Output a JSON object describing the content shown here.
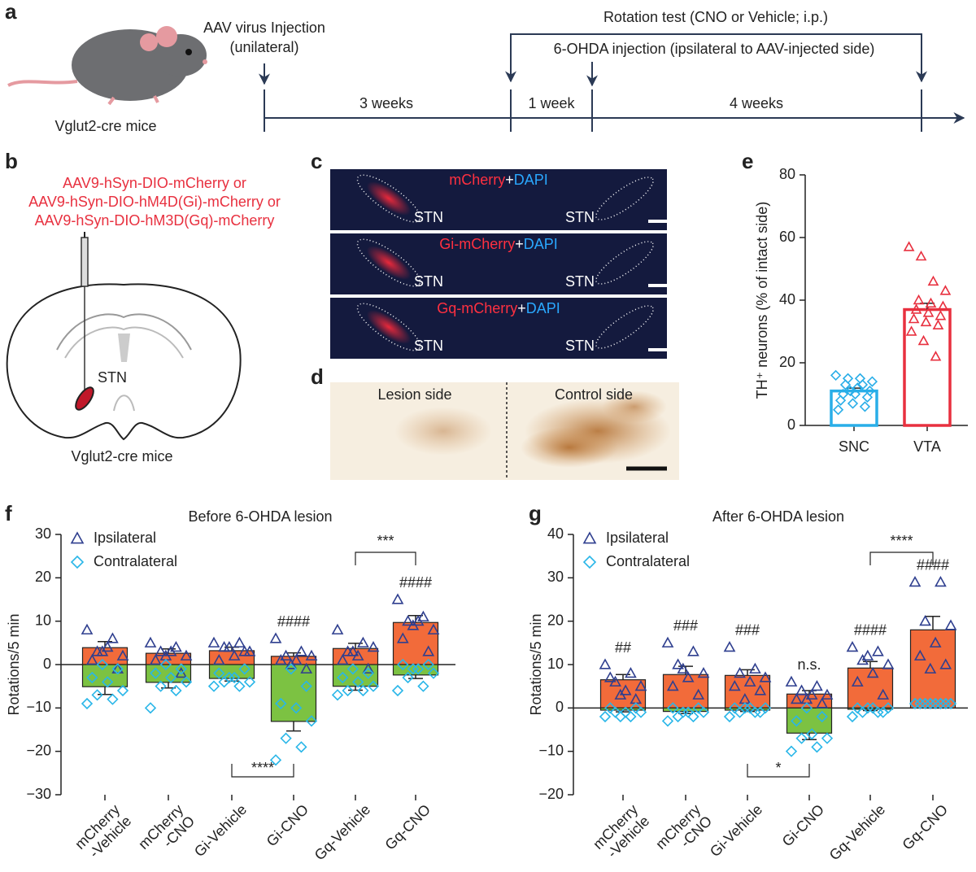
{
  "panel_a": {
    "label": "a",
    "mouse_label": "Vglut2-cre mice",
    "injection": [
      "AAV virus Injection",
      "(unilateral)"
    ],
    "rotation_test": "Rotation test (CNO or Vehicle; i.p.)",
    "lesion": "6-OHDA injection (ipsilateral to AAV-injected side)",
    "intervals": [
      "3 weeks",
      "1 week",
      "4 weeks"
    ]
  },
  "panel_b": {
    "label": "b",
    "constructs": [
      "AAV9-hSyn-DIO-mCherry  or",
      "AAV9-hSyn-DIO-hM4D(Gi)-mCherry or",
      "AAV9-hSyn-DIO-hM3D(Gq)-mCherry"
    ],
    "region": "STN",
    "mouse_label": "Vglut2-cre mice"
  },
  "panel_c": {
    "label": "c",
    "images": [
      {
        "stain": "mCherry",
        "plus": "+",
        "counterstain": "DAPI",
        "left": "STN",
        "right": "STN"
      },
      {
        "stain": "Gi-mCherry",
        "plus": "+",
        "counterstain": "DAPI",
        "left": "STN",
        "right": "STN"
      },
      {
        "stain": "Gq-mCherry",
        "plus": "+",
        "counterstain": "DAPI",
        "left": "STN",
        "right": "STN"
      }
    ]
  },
  "panel_d": {
    "label": "d",
    "left": "Lesion side",
    "right": "Control side"
  },
  "chart_data": [
    {
      "type": "bar",
      "panel": "e",
      "ylabel": "TH⁺ neurons (% of intact side)",
      "categories": [
        "SNC",
        "VTA"
      ],
      "values": [
        11,
        37
      ],
      "errors": [
        0.9,
        2.0
      ],
      "colors": [
        "#29aee8",
        "#e8303f"
      ],
      "markers": [
        "diamond",
        "triangle"
      ],
      "points": [
        [
          16,
          15,
          15,
          14,
          13,
          12,
          11,
          10,
          10,
          9,
          8,
          7,
          6,
          5,
          11,
          13
        ],
        [
          57,
          54,
          46,
          43,
          40,
          39,
          38,
          37,
          36,
          35,
          34,
          33,
          32,
          30,
          27,
          22
        ]
      ],
      "ylim": [
        0,
        80
      ],
      "yticks": [
        0,
        20,
        40,
        60,
        80
      ]
    },
    {
      "type": "bar",
      "panel": "f",
      "title": "Before 6-OHDA lesion",
      "ylabel": "Rotations/5 min",
      "categories": [
        "mCherry\n-Vehicle",
        "mCherry\n-CNO",
        "Gi-Vehicle",
        "Gi-CNO",
        "Gq-Vehicle",
        "Gq-CNO"
      ],
      "series": [
        {
          "name": "Ipsilateral",
          "color": "#f26b3a",
          "marker": "triangle",
          "marker_color": "#2f3f8f",
          "values": [
            3.9,
            2.6,
            3.2,
            1.9,
            3.7,
            9.7
          ],
          "errors": [
            1.4,
            1.0,
            0.8,
            0.8,
            1.2,
            1.6
          ],
          "points": [
            [
              8,
              6,
              3,
              2,
              4,
              1,
              -1,
              3
            ],
            [
              5,
              4,
              3,
              2,
              3,
              1,
              -2,
              2
            ],
            [
              5,
              5,
              4,
              3,
              2,
              1,
              3,
              4
            ],
            [
              6,
              3,
              2,
              2,
              1,
              1,
              -1,
              0
            ],
            [
              8,
              5,
              3,
              4,
              2,
              1,
              -1,
              3
            ],
            [
              15,
              11,
              10,
              8,
              10,
              6,
              3,
              9
            ]
          ]
        },
        {
          "name": "Contralateral",
          "color": "#7cc242",
          "marker": "diamond",
          "marker_color": "#29b6e8",
          "values": [
            -5.1,
            -4.1,
            -3.2,
            -13.1,
            -5.0,
            -2.4
          ],
          "errors": [
            1.8,
            1.3,
            0.6,
            2.2,
            0.9,
            0.8
          ],
          "points": [
            [
              -9,
              -8,
              -7,
              -6,
              -4,
              -3,
              -1,
              0
            ],
            [
              -10,
              -6,
              -5,
              -4,
              -3,
              -2,
              -1,
              0
            ],
            [
              -5,
              -5,
              -4,
              -4,
              -3,
              -2,
              -1,
              -3
            ],
            [
              -22,
              -19,
              -17,
              -13,
              -10,
              -9,
              -5,
              -1
            ],
            [
              -7,
              -6,
              -6,
              -5,
              -4,
              -3,
              -2,
              -1
            ],
            [
              -6,
              -5,
              -3,
              -2,
              -1,
              0,
              0,
              -1
            ]
          ]
        }
      ],
      "above": [
        null,
        null,
        null,
        "####",
        null,
        "####"
      ],
      "brackets": [
        {
          "label": "****",
          "between": [
            2,
            3
          ],
          "side": "bottom"
        },
        {
          "label": "***",
          "between": [
            4,
            5
          ],
          "side": "top"
        }
      ],
      "ylim": [
        -30,
        30
      ],
      "yticks": [
        {
          "value": -30,
          "label": "−30"
        },
        {
          "value": -20,
          "label": "−20"
        },
        {
          "value": -10,
          "label": "−10"
        },
        0,
        10,
        20,
        30
      ]
    },
    {
      "type": "bar",
      "panel": "g",
      "title": "After 6-OHDA lesion",
      "ylabel": "Rotations/5 min",
      "categories": [
        "mCherry\n-Vehicle",
        "mCherry\n-CNO",
        "Gi-Vehicle",
        "Gi-CNO",
        "Gq-Vehicle",
        "Gq-CNO"
      ],
      "series": [
        {
          "name": "Ipsilateral",
          "color": "#f26b3a",
          "marker": "triangle",
          "marker_color": "#2f3f8f",
          "values": [
            6.5,
            7.7,
            7.5,
            3.2,
            9.2,
            18
          ],
          "errors": [
            1.2,
            1.9,
            1.3,
            0.8,
            1.5,
            3.1
          ],
          "points": [
            [
              10,
              8,
              6,
              5,
              4,
              7,
              2,
              3
            ],
            [
              15,
              13,
              10,
              8,
              7,
              5,
              3,
              9
            ],
            [
              14,
              9,
              8,
              7,
              6,
              5,
              4,
              2
            ],
            [
              6,
              5,
              4,
              3,
              3,
              2,
              1,
              2
            ],
            [
              14,
              13,
              11,
              10,
              8,
              6,
              3,
              12
            ],
            [
              29,
              29,
              20,
              19,
              15,
              12,
              10,
              9
            ]
          ]
        },
        {
          "name": "Contralateral",
          "color": "#7cc242",
          "marker": "diamond",
          "marker_color": "#29b6e8",
          "values": [
            -0.5,
            -0.8,
            -0.5,
            -5.8,
            -0.3,
            0
          ],
          "errors": [
            0.4,
            0.5,
            0.3,
            1.5,
            0.3,
            0
          ],
          "points": [
            [
              -2,
              -2,
              -1,
              -1,
              -1,
              0,
              0,
              -2
            ],
            [
              -3,
              -2,
              -2,
              -1,
              -1,
              0,
              0,
              -1
            ],
            [
              -2,
              -1,
              -1,
              0,
              0,
              0,
              -1,
              0
            ],
            [
              -10,
              -9,
              -7,
              -7,
              -6,
              -3,
              -2,
              0
            ],
            [
              -2,
              -1,
              -1,
              0,
              0,
              0,
              -1,
              0
            ],
            [
              1,
              1,
              1,
              1,
              1,
              1,
              1,
              1
            ]
          ]
        }
      ],
      "above": [
        "##",
        "###",
        "###",
        "n.s.",
        "####",
        "####"
      ],
      "brackets": [
        {
          "label": "*",
          "between": [
            2,
            3
          ],
          "side": "bottom"
        },
        {
          "label": "****",
          "between": [
            4,
            5
          ],
          "side": "top"
        }
      ],
      "ylim": [
        -20,
        40
      ],
      "yticks": [
        {
          "value": -20,
          "label": "−20"
        },
        {
          "value": -10,
          "label": "−10"
        },
        0,
        10,
        20,
        30,
        40
      ]
    }
  ]
}
